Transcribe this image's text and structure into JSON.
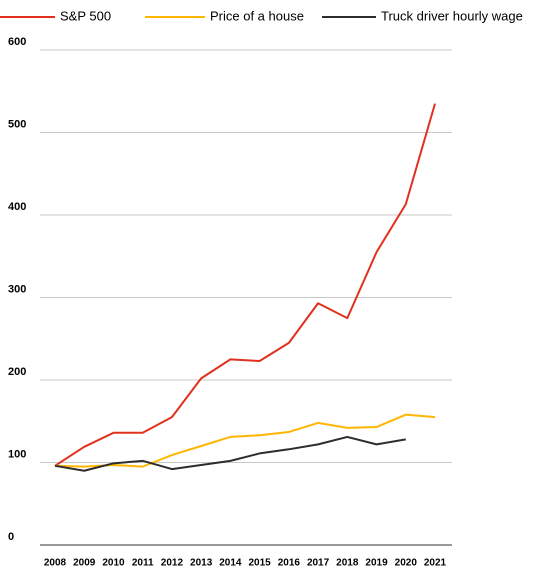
{
  "chart_data": {
    "type": "line",
    "categories": [
      "2008",
      "2009",
      "2010",
      "2011",
      "2012",
      "2013",
      "2014",
      "2015",
      "2016",
      "2017",
      "2018",
      "2019",
      "2020",
      "2021"
    ],
    "series": [
      {
        "name": "S&P 500",
        "color": "#e0301e",
        "values": [
          96,
          119,
          136,
          136,
          155,
          202,
          225,
          223,
          245,
          293,
          275,
          355,
          413,
          535
        ]
      },
      {
        "name": "Price of a house",
        "color": "#ffb600",
        "values": [
          96,
          95,
          97,
          95,
          109,
          120,
          131,
          133,
          137,
          148,
          142,
          143,
          158,
          155
        ]
      },
      {
        "name": "Truck driver hourly wage",
        "color": "#2d2d2d",
        "values": [
          96,
          90,
          99,
          102,
          92,
          97,
          102,
          111,
          116,
          122,
          131,
          122,
          128,
          null
        ]
      }
    ],
    "ylim": [
      0,
      600
    ],
    "yticks": [
      0,
      100,
      200,
      300,
      400,
      500,
      600
    ],
    "grid": true,
    "legend": "top"
  }
}
